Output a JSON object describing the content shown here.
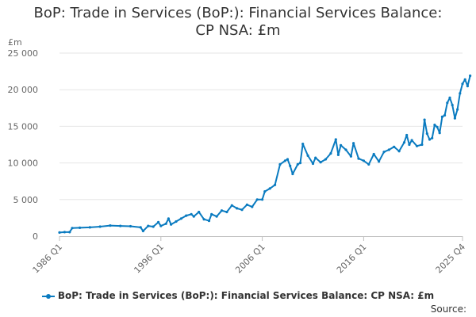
{
  "title_lines": [
    "BoP: Trade in Services (BoP:): Financial Services Balance:",
    "CP NSA: £m"
  ],
  "source_label": "Source:",
  "chart_data": {
    "type": "line",
    "title": "BoP: Trade in Services (BoP:): Financial Services Balance: CP NSA: £m",
    "ylabel": "£m",
    "xlabel": "",
    "ylim": [
      0,
      25000
    ],
    "y_ticks": [
      "0",
      "5 000",
      "10 000",
      "15 000",
      "20 000",
      "25 000"
    ],
    "x_ticks": [
      "1986 Q1",
      "1996 Q1",
      "2006 Q1",
      "2016 Q1",
      "2025 Q4"
    ],
    "grid": "horizontal",
    "legend_position": "bottom",
    "colors": {
      "series": "#0a7bc0",
      "grid": "#e6e6e6",
      "axis": "#c0c0c0"
    },
    "series": [
      {
        "name": "BoP: Trade in Services (BoP:): Financial Services Balance: CP NSA: £m",
        "points": [
          [
            "1986 Q1",
            500
          ],
          [
            "1986 Q3",
            550
          ],
          [
            "1987 Q1",
            550
          ],
          [
            "1987 Q2",
            1100
          ],
          [
            "1988 Q1",
            1150
          ],
          [
            "1989 Q1",
            1200
          ],
          [
            "1990 Q1",
            1300
          ],
          [
            "1991 Q1",
            1450
          ],
          [
            "1992 Q1",
            1400
          ],
          [
            "1993 Q1",
            1350
          ],
          [
            "1994 Q1",
            1200
          ],
          [
            "1994 Q2",
            700
          ],
          [
            "1994 Q4",
            1400
          ],
          [
            "1995 Q2",
            1300
          ],
          [
            "1995 Q4",
            1900
          ],
          [
            "1996 Q1",
            1400
          ],
          [
            "1996 Q3",
            1700
          ],
          [
            "1996 Q4",
            2400
          ],
          [
            "1997 Q1",
            1600
          ],
          [
            "1997 Q3",
            2000
          ],
          [
            "1998 Q1",
            2400
          ],
          [
            "1998 Q3",
            2800
          ],
          [
            "1999 Q1",
            3000
          ],
          [
            "1999 Q2",
            2700
          ],
          [
            "1999 Q4",
            3300
          ],
          [
            "2000 Q2",
            2300
          ],
          [
            "2000 Q4",
            2100
          ],
          [
            "2001 Q1",
            3000
          ],
          [
            "2001 Q3",
            2700
          ],
          [
            "2002 Q1",
            3500
          ],
          [
            "2002 Q3",
            3300
          ],
          [
            "2003 Q1",
            4200
          ],
          [
            "2003 Q3",
            3800
          ],
          [
            "2004 Q1",
            3600
          ],
          [
            "2004 Q3",
            4300
          ],
          [
            "2005 Q1",
            4000
          ],
          [
            "2005 Q3",
            5000
          ],
          [
            "2006 Q1",
            5000
          ],
          [
            "2006 Q2",
            6100
          ],
          [
            "2006 Q4",
            6500
          ],
          [
            "2007 Q2",
            7000
          ],
          [
            "2007 Q4",
            9800
          ],
          [
            "2008 Q2",
            10300
          ],
          [
            "2008 Q3",
            10500
          ],
          [
            "2008 Q4",
            9600
          ],
          [
            "2009 Q1",
            8500
          ],
          [
            "2009 Q3",
            9800
          ],
          [
            "2009 Q4",
            10000
          ],
          [
            "2010 Q1",
            12600
          ],
          [
            "2010 Q3",
            11000
          ],
          [
            "2011 Q1",
            9900
          ],
          [
            "2011 Q2",
            10700
          ],
          [
            "2011 Q4",
            10100
          ],
          [
            "2012 Q2",
            10500
          ],
          [
            "2012 Q4",
            11300
          ],
          [
            "2013 Q2",
            13200
          ],
          [
            "2013 Q3",
            11100
          ],
          [
            "2013 Q4",
            12400
          ],
          [
            "2014 Q2",
            11800
          ],
          [
            "2014 Q4",
            10900
          ],
          [
            "2015 Q1",
            12700
          ],
          [
            "2015 Q3",
            10600
          ],
          [
            "2016 Q1",
            10300
          ],
          [
            "2016 Q3",
            9800
          ],
          [
            "2017 Q1",
            11200
          ],
          [
            "2017 Q3",
            10200
          ],
          [
            "2018 Q1",
            11500
          ],
          [
            "2018 Q3",
            11800
          ],
          [
            "2019 Q1",
            12200
          ],
          [
            "2019 Q3",
            11600
          ],
          [
            "2020 Q1",
            12800
          ],
          [
            "2020 Q2",
            13800
          ],
          [
            "2020 Q3",
            12500
          ],
          [
            "2020 Q4",
            13100
          ],
          [
            "2021 Q2",
            12300
          ],
          [
            "2021 Q4",
            12500
          ],
          [
            "2022 Q1",
            15900
          ],
          [
            "2022 Q2",
            14000
          ],
          [
            "2022 Q3",
            13200
          ],
          [
            "2022 Q4",
            13400
          ],
          [
            "2023 Q1",
            15200
          ],
          [
            "2023 Q2",
            14900
          ],
          [
            "2023 Q3",
            14100
          ],
          [
            "2023 Q4",
            16300
          ],
          [
            "2024 Q1",
            16500
          ],
          [
            "2024 Q2",
            18200
          ],
          [
            "2024 Q3",
            18900
          ],
          [
            "2024 Q4",
            17900
          ],
          [
            "2025 Q1",
            16100
          ],
          [
            "2025 Q2",
            17300
          ],
          [
            "2025 Q3",
            19500
          ],
          [
            "2025 Q4",
            20800
          ],
          [
            "2026 Q1",
            21400
          ],
          [
            "2026 Q2",
            20500
          ],
          [
            "2026 Q3",
            21900
          ]
        ]
      }
    ]
  }
}
